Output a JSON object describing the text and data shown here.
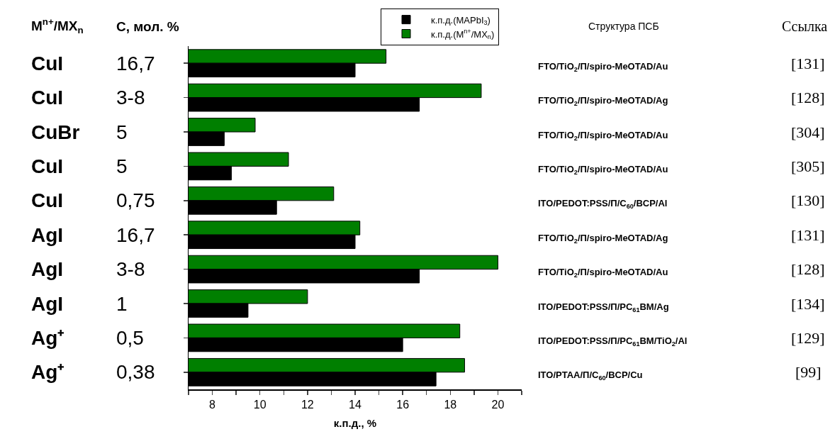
{
  "chart_data": {
    "type": "bar",
    "orientation": "horizontal",
    "xlabel": "к.п.д., %",
    "ylabel": "M$^{n+}$/MX$_{n}$",
    "categories": [
      "CuI",
      "CuI",
      "CuBr",
      "CuI",
      "CuI",
      "AgI",
      "AgI",
      "AgI",
      "Ag⁺",
      "Ag⁺"
    ],
    "series": [
      {
        "name": "к.п.д.(M$^{n+}$/MX$_{n}$)",
        "color": "#007f00",
        "values": [
          15.3,
          19.3,
          9.8,
          11.2,
          13.1,
          14.2,
          20.0,
          12.0,
          18.4,
          18.6
        ]
      },
      {
        "name": "к.п.д.(MAPbI$_{3}$)",
        "color": "#000000",
        "values": [
          14.0,
          16.7,
          8.5,
          8.8,
          10.7,
          14.0,
          16.7,
          9.5,
          16.0,
          17.4
        ]
      }
    ],
    "xlim": [
      7,
      21
    ],
    "xticks": [
      {
        "value": 7,
        "label": null
      },
      8,
      {
        "value": 9,
        "label": null
      },
      10,
      {
        "value": 11,
        "label": null
      },
      12,
      {
        "value": 13,
        "label": null
      },
      14,
      {
        "value": 15,
        "label": null
      },
      16,
      {
        "value": 17,
        "label": null
      },
      18,
      {
        "value": 19,
        "label": null
      },
      20,
      {
        "value": 21,
        "label": null
      }
    ],
    "legend": "top",
    "grid": false,
    "annotations": [
      "C, мол. %",
      "Структура ПСБ",
      "Ссылка",
      "16,7",
      "3-8",
      "5",
      "5",
      "0,75",
      "16,7",
      "3-8",
      "1",
      "0,5",
      "0,38",
      "FTO/TiO$_{2}$/П/spiro-MeOTAD/Au",
      "FTO/TiO$_{2}$/П/spiro-MeOTAD/Ag",
      "FTO/TiO$_{2}$/П/spiro-MeOTAD/Au",
      "FTO/TiO$_{2}$/П/spiro-MeOTAD/Au",
      "ITO/PEDOT:PSS/П/C$_{60}$/BCP/Al",
      "FTO/TiO$_{2}$/П/spiro-MeOTAD/Ag",
      "FTO/TiO$_{2}$/П/spiro-MeOTAD/Au",
      "ITO/PEDOT:PSS/П/PC$_{61}$BM/Ag",
      "ITO/PEDOT:PSS/П/PC$_{61}$BM/TiO$_{2}$/Al",
      "ITO/PTAA/П/C$_{60}$/BCP/Cu",
      "[131]",
      "[128]",
      "[304]",
      "[305]",
      "[130]",
      "[131]",
      "[128]",
      "[134]",
      "[129]",
      "[99]"
    ]
  }
}
